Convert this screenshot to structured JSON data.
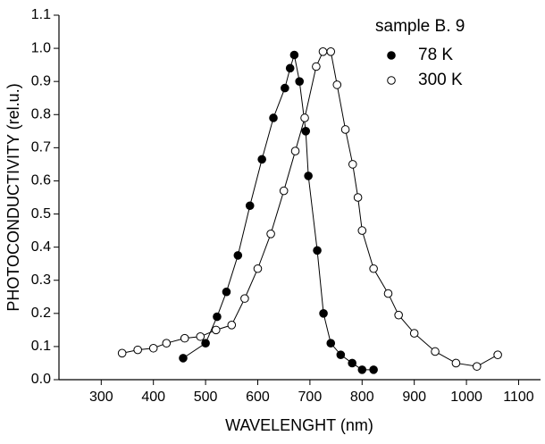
{
  "chart_data": {
    "type": "scatter",
    "xlabel": "WAVELENGHT (nm)",
    "ylabel": "PHOTOCONDUCTIVITY (rel.u.)",
    "legend_title": "sample B. 9",
    "xlim": [
      219,
      1142
    ],
    "ylim": [
      0,
      1.1
    ],
    "xticks": [
      300,
      400,
      500,
      600,
      700,
      800,
      900,
      1000,
      1100
    ],
    "yticks": [
      {
        "value": 0,
        "label": "0.0"
      },
      0.1,
      0.2,
      0.3,
      0.4,
      0.5,
      0.6,
      0.7,
      0.8,
      0.9,
      {
        "value": 1,
        "label": "1.0"
      },
      1.1
    ],
    "series": [
      {
        "name": "78 K",
        "color": "#000000",
        "filled": true,
        "x": [
          457,
          500,
          522,
          540,
          562,
          585,
          608,
          630,
          652,
          662,
          670,
          680,
          692,
          697,
          714,
          726,
          740,
          759,
          781,
          800,
          822
        ],
        "values": [
          0.065,
          0.11,
          0.19,
          0.265,
          0.375,
          0.525,
          0.665,
          0.79,
          0.88,
          0.94,
          0.98,
          0.9,
          0.75,
          0.615,
          0.39,
          0.2,
          0.11,
          0.075,
          0.05,
          0.03,
          0.03
        ]
      },
      {
        "name": "300 K",
        "color": "#000000",
        "filled": false,
        "x": [
          340,
          370,
          400,
          425,
          460,
          490,
          520,
          550,
          575,
          600,
          625,
          650,
          672,
          690,
          712,
          725,
          740,
          752,
          768,
          782,
          792,
          800,
          822,
          850,
          870,
          900,
          940,
          980,
          1020,
          1060
        ],
        "values": [
          0.08,
          0.09,
          0.095,
          0.11,
          0.125,
          0.13,
          0.15,
          0.165,
          0.245,
          0.335,
          0.44,
          0.57,
          0.69,
          0.79,
          0.945,
          0.99,
          0.99,
          0.89,
          0.755,
          0.65,
          0.55,
          0.45,
          0.335,
          0.26,
          0.195,
          0.14,
          0.085,
          0.05,
          0.04,
          0.075
        ]
      }
    ]
  }
}
